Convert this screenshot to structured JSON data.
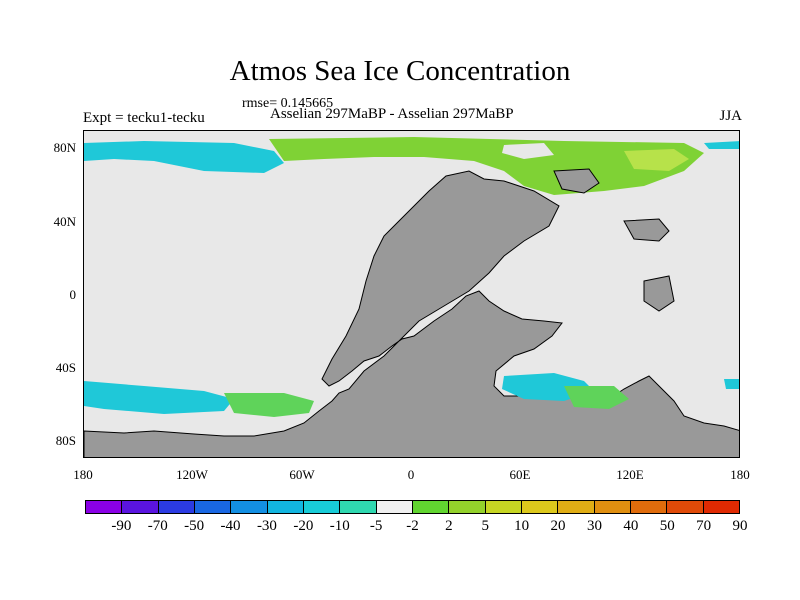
{
  "title": "Atmos Sea Ice Concentration",
  "rmse": "rmse= 0.145665",
  "expt": "Expt = tecku1-tecku",
  "subtitle": "Asselian 297MaBP - Asselian 297MaBP",
  "season": "JJA",
  "map": {
    "lat_ticks": [
      "80N",
      "40N",
      "0",
      "40S",
      "80S"
    ],
    "lon_ticks": [
      "180",
      "120W",
      "60W",
      "0",
      "60E",
      "120E",
      "180"
    ],
    "colors": {
      "ocean_background": "#e8e8e8",
      "land": "#999999",
      "arctic_positive": "#7fd235",
      "arctic_positive_inner": "#b7e24a",
      "cyan_negative": "#1fc8d8",
      "green_band": "#5fd35a"
    }
  },
  "colorbar": {
    "labels": [
      "-90",
      "-70",
      "-50",
      "-40",
      "-30",
      "-20",
      "-10",
      "-5",
      "-2",
      "2",
      "5",
      "10",
      "20",
      "30",
      "40",
      "50",
      "70",
      "90"
    ],
    "colors": [
      "#8a00e6",
      "#5a14e0",
      "#2b3be3",
      "#1967e3",
      "#138fe3",
      "#12b5e0",
      "#18ccd8",
      "#2fd8b0",
      "#f0f0f0",
      "#61d530",
      "#93d12b",
      "#c6d523",
      "#dcc81c",
      "#e0ad15",
      "#e08f10",
      "#e06c0c",
      "#e04a08",
      "#e02a02"
    ]
  }
}
